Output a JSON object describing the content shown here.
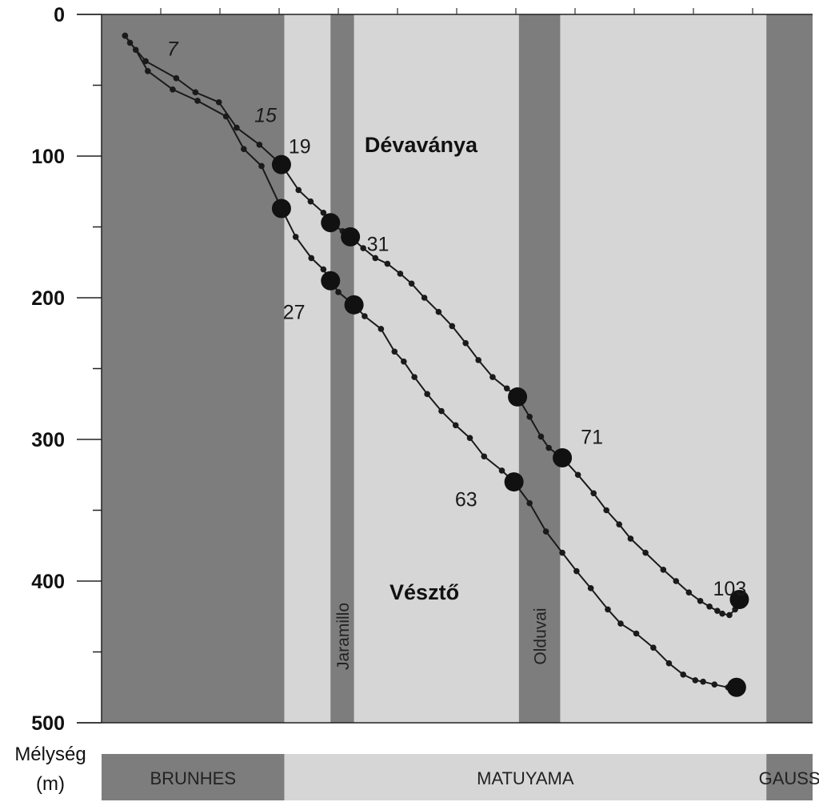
{
  "chart_data": {
    "type": "line",
    "y_axis": {
      "title_lines": [
        "Mélység",
        "(m)"
      ],
      "range": [
        0,
        500
      ],
      "ticks": [
        0,
        100,
        200,
        300,
        400,
        500
      ],
      "tick_labels": [
        "0",
        "100",
        "200",
        "300",
        "400",
        "500"
      ],
      "minor_step": 50,
      "inverted": true
    },
    "x_axis": {
      "range": [
        0,
        1
      ],
      "labels_shown": false
    },
    "grid": false,
    "polarity_intervals": [
      {
        "label": "",
        "from": 0.0,
        "to": 0.257,
        "color": "#7d7d7d"
      },
      {
        "label": "",
        "from": 0.257,
        "to": 0.935,
        "color": "#d6d6d6"
      },
      {
        "label": "Jaramillo",
        "from": 0.322,
        "to": 0.355,
        "color": "#7d7d7d"
      },
      {
        "label": "Olduvai",
        "from": 0.587,
        "to": 0.645,
        "color": "#7d7d7d"
      },
      {
        "label": "",
        "from": 0.935,
        "to": 1.0,
        "color": "#7d7d7d"
      }
    ],
    "epochs": [
      {
        "label": "BRUNHES",
        "from": 0.0,
        "to": 0.257,
        "color": "#7d7d7d"
      },
      {
        "label": "MATUYAMA",
        "from": 0.257,
        "to": 0.935,
        "color": "#d6d6d6"
      },
      {
        "label": "GAUSS",
        "from": 0.935,
        "to": 1.0,
        "color": "#7d7d7d"
      }
    ],
    "series": [
      {
        "name": "Dévaványa",
        "label_at": [
          0.37,
          92
        ],
        "points": [
          [
            0.033,
            15
          ],
          [
            0.04,
            20
          ],
          [
            0.062,
            33
          ],
          [
            0.105,
            45
          ],
          [
            0.132,
            55
          ],
          [
            0.165,
            62
          ],
          [
            0.19,
            80
          ],
          [
            0.222,
            92
          ],
          [
            0.253,
            106
          ],
          [
            0.277,
            124
          ],
          [
            0.294,
            132
          ],
          [
            0.312,
            140
          ],
          [
            0.322,
            147
          ],
          [
            0.339,
            153
          ],
          [
            0.35,
            157
          ],
          [
            0.368,
            165
          ],
          [
            0.385,
            172
          ],
          [
            0.402,
            176
          ],
          [
            0.42,
            183
          ],
          [
            0.436,
            190
          ],
          [
            0.454,
            200
          ],
          [
            0.474,
            210
          ],
          [
            0.493,
            220
          ],
          [
            0.512,
            232
          ],
          [
            0.53,
            244
          ],
          [
            0.55,
            256
          ],
          [
            0.57,
            264
          ],
          [
            0.585,
            270
          ],
          [
            0.602,
            284
          ],
          [
            0.618,
            298
          ],
          [
            0.629,
            306
          ],
          [
            0.648,
            313
          ],
          [
            0.67,
            325
          ],
          [
            0.692,
            338
          ],
          [
            0.71,
            350
          ],
          [
            0.728,
            360
          ],
          [
            0.744,
            370
          ],
          [
            0.765,
            380
          ],
          [
            0.79,
            392
          ],
          [
            0.808,
            400
          ],
          [
            0.826,
            408
          ],
          [
            0.842,
            414
          ],
          [
            0.855,
            418
          ],
          [
            0.866,
            421
          ],
          [
            0.873,
            423
          ],
          [
            0.883,
            424
          ],
          [
            0.891,
            420
          ],
          [
            0.897,
            413
          ]
        ],
        "large_points": [
          [
            0.253,
            106
          ],
          [
            0.322,
            147
          ],
          [
            0.35,
            157
          ],
          [
            0.585,
            270
          ],
          [
            0.648,
            313
          ],
          [
            0.897,
            413
          ]
        ]
      },
      {
        "name": "Vésztő",
        "label_at": [
          0.405,
          408
        ],
        "points": [
          [
            0.033,
            15
          ],
          [
            0.048,
            25
          ],
          [
            0.065,
            40
          ],
          [
            0.1,
            53
          ],
          [
            0.135,
            61
          ],
          [
            0.175,
            72
          ],
          [
            0.2,
            95
          ],
          [
            0.225,
            107
          ],
          [
            0.253,
            137
          ],
          [
            0.273,
            157
          ],
          [
            0.295,
            172
          ],
          [
            0.312,
            180
          ],
          [
            0.322,
            188
          ],
          [
            0.333,
            196
          ],
          [
            0.355,
            205
          ],
          [
            0.37,
            213
          ],
          [
            0.393,
            222
          ],
          [
            0.412,
            238
          ],
          [
            0.425,
            245
          ],
          [
            0.44,
            256
          ],
          [
            0.458,
            268
          ],
          [
            0.478,
            280
          ],
          [
            0.498,
            290
          ],
          [
            0.518,
            299
          ],
          [
            0.538,
            312
          ],
          [
            0.563,
            322
          ],
          [
            0.58,
            330
          ],
          [
            0.602,
            345
          ],
          [
            0.625,
            365
          ],
          [
            0.648,
            380
          ],
          [
            0.668,
            393
          ],
          [
            0.688,
            405
          ],
          [
            0.712,
            420
          ],
          [
            0.73,
            430
          ],
          [
            0.752,
            437
          ],
          [
            0.776,
            447
          ],
          [
            0.798,
            458
          ],
          [
            0.818,
            466
          ],
          [
            0.835,
            470
          ],
          [
            0.846,
            471
          ],
          [
            0.862,
            473
          ],
          [
            0.881,
            475
          ],
          [
            0.893,
            475
          ]
        ],
        "large_points": [
          [
            0.253,
            137
          ],
          [
            0.322,
            188
          ],
          [
            0.355,
            205
          ],
          [
            0.58,
            330
          ],
          [
            0.893,
            475
          ]
        ]
      }
    ],
    "age_labels": [
      {
        "text": "7",
        "x": 0.092,
        "y": 24,
        "italic": true
      },
      {
        "text": "15",
        "x": 0.215,
        "y": 71,
        "italic": true
      },
      {
        "text": "19",
        "x": 0.263,
        "y": 93,
        "italic": false
      },
      {
        "text": "27",
        "x": 0.255,
        "y": 210,
        "italic": false
      },
      {
        "text": "31",
        "x": 0.373,
        "y": 162,
        "italic": false
      },
      {
        "text": "63",
        "x": 0.497,
        "y": 342,
        "italic": false
      },
      {
        "text": "71",
        "x": 0.674,
        "y": 298,
        "italic": false
      },
      {
        "text": "103",
        "x": 0.86,
        "y": 405,
        "italic": false
      }
    ]
  }
}
